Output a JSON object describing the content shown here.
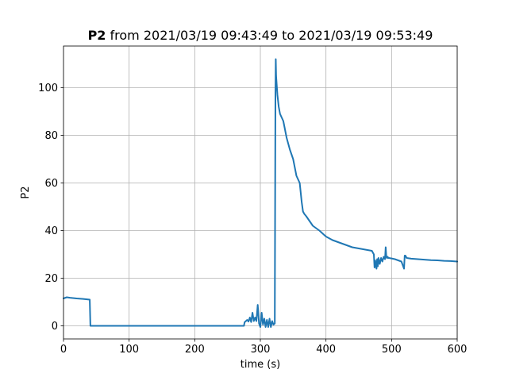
{
  "chart_data": {
    "type": "line",
    "title": {
      "bold": "P2",
      "rest": " from 2021/03/19 09:43:49 to 2021/03/19 09:53:49"
    },
    "xlabel": "time (s)",
    "ylabel": "P2",
    "xlim": [
      0,
      600
    ],
    "ylim": [
      -5.5,
      117.5
    ],
    "xticks": [
      0,
      100,
      200,
      300,
      400,
      500,
      600
    ],
    "yticks": [
      0,
      20,
      40,
      60,
      80,
      100
    ],
    "grid": true,
    "series": [
      {
        "color": "#1f77b4",
        "x": [
          0,
          5,
          10,
          20,
          30,
          40,
          41,
          41.5,
          100,
          200,
          275,
          276,
          280,
          282,
          284,
          286,
          288,
          290,
          292,
          294,
          296,
          298,
          300,
          302,
          304,
          306,
          308,
          310,
          312,
          314,
          316,
          318,
          320,
          322,
          323,
          323.5,
          324,
          326,
          328,
          330,
          335,
          340,
          345,
          350,
          355,
          360,
          363,
          365,
          367,
          370,
          375,
          380,
          390,
          400,
          410,
          420,
          430,
          440,
          450,
          460,
          470,
          473,
          474,
          475,
          477,
          478,
          479,
          480,
          482,
          484,
          486,
          488,
          490,
          491,
          492,
          493,
          494,
          495,
          496,
          500,
          505,
          510,
          515,
          519,
          520,
          521,
          522,
          523,
          530,
          540,
          550,
          560,
          570,
          580,
          590,
          600
        ],
        "y": [
          11.5,
          12,
          11.8,
          11.5,
          11.3,
          11.0,
          0,
          0,
          0,
          0,
          0,
          1.5,
          2.5,
          1.8,
          3.5,
          1.6,
          5.5,
          2.0,
          3.5,
          2.0,
          8.8,
          1.0,
          -0.5,
          5.5,
          0.5,
          3.0,
          -0.5,
          2.5,
          -0.5,
          3.0,
          -0.5,
          2.0,
          0.5,
          1.0,
          98,
          112,
          105,
          97,
          92,
          89,
          86,
          79,
          74,
          70,
          63,
          60,
          52,
          48,
          47,
          46,
          44,
          42,
          40,
          37.5,
          36,
          35,
          34,
          33,
          32.5,
          32,
          31.5,
          30,
          24.5,
          27.5,
          24,
          28,
          25,
          28.5,
          26,
          28.5,
          27,
          29,
          28,
          33,
          29,
          28.5,
          29,
          28.5,
          28.5,
          28.3,
          28,
          27.5,
          27,
          24,
          29.5,
          29.5,
          29,
          28.5,
          28.2,
          28,
          27.8,
          27.6,
          27.5,
          27.3,
          27.2,
          27.0
        ]
      }
    ]
  }
}
